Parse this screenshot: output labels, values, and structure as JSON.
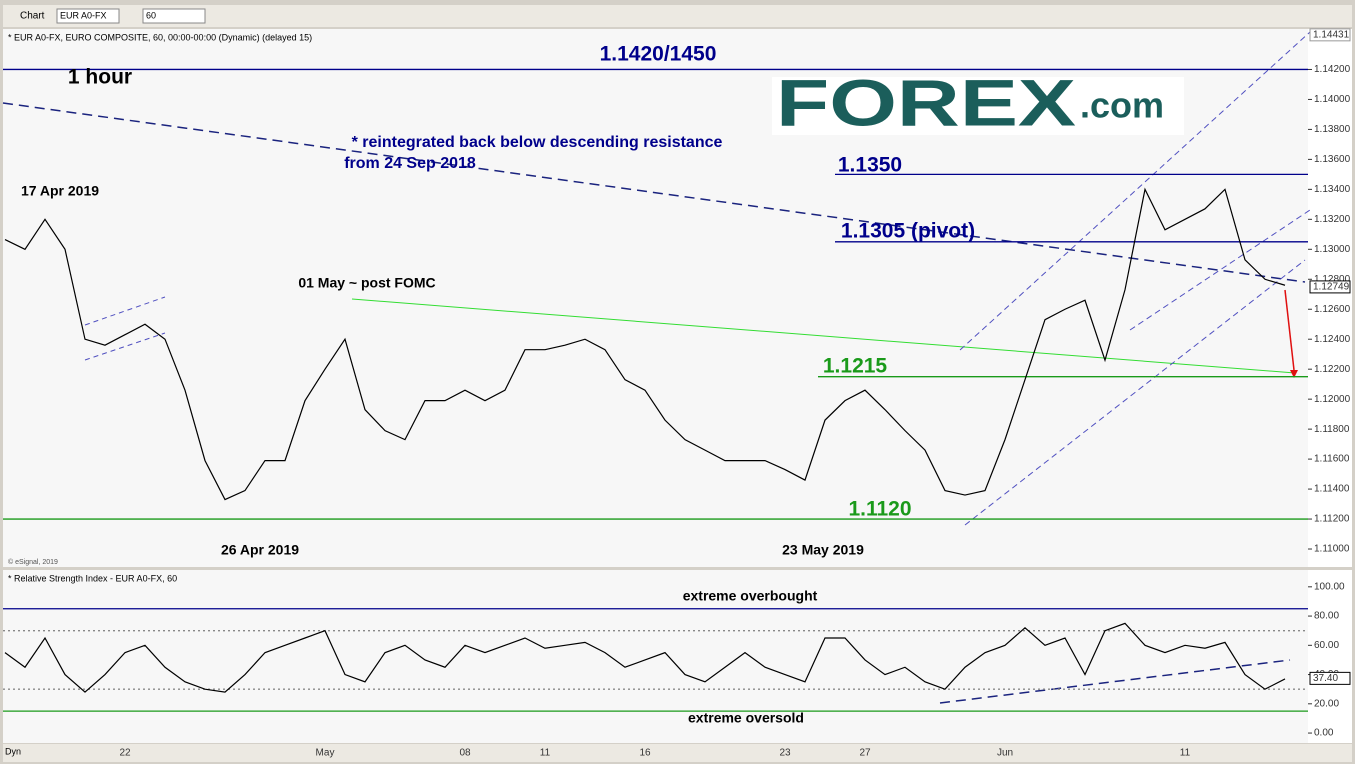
{
  "toolbar": {
    "app": "Chart",
    "symbol": "EUR A0-FX",
    "interval": "60",
    "mode": "Dyn"
  },
  "chart_data": [
    {
      "type": "line",
      "title": "* EUR A0-FX, EURO COMPOSITE, 60, 00:00-00:00 (Dynamic) (delayed 15)",
      "credit": "© eSignal, 2019",
      "logo": {
        "main": "FOREX",
        "suffix": ".com"
      },
      "categories": [
        null,
        null,
        null,
        null,
        null,
        null,
        "22",
        null,
        null,
        null,
        null,
        null,
        null,
        null,
        null,
        null,
        "May",
        null,
        null,
        null,
        null,
        null,
        null,
        "08",
        null,
        null,
        null,
        "11",
        null,
        null,
        null,
        null,
        "16",
        null,
        null,
        null,
        null,
        null,
        null,
        "23",
        null,
        null,
        null,
        "27",
        null,
        null,
        null,
        null,
        null,
        null,
        "Jun",
        null,
        null,
        null,
        null,
        null,
        null,
        null,
        null,
        "11",
        null,
        null,
        null,
        null,
        null
      ],
      "series": [
        {
          "color": "#000000",
          "values": [
            1.13065,
            1.13,
            1.132,
            1.13,
            1.124,
            1.1236,
            1.1243,
            1.125,
            1.124,
            1.1206,
            1.1159,
            1.1133,
            1.1139,
            1.1159,
            1.1159,
            1.1199,
            1.122,
            1.124,
            1.1193,
            1.1179,
            1.1173,
            1.1199,
            1.1199,
            1.1206,
            1.1199,
            1.1206,
            1.1233,
            1.1233,
            1.1236,
            1.124,
            1.1233,
            1.1213,
            1.1206,
            1.1186,
            1.1173,
            1.1166,
            1.1159,
            1.1159,
            1.1159,
            1.1153,
            1.1146,
            1.1186,
            1.1199,
            1.1206,
            1.1193,
            1.1179,
            1.1166,
            1.1139,
            1.1136,
            1.1139,
            1.1173,
            1.1213,
            1.1253,
            1.126,
            1.1266,
            1.1226,
            1.1273,
            1.134,
            1.1313,
            1.132,
            1.1327,
            1.134,
            1.1293,
            1.128,
            1.1276
          ]
        }
      ],
      "ylim": [
        1.1088,
        1.1447
      ],
      "yticks": [
        {
          "value": 1.11,
          "label": "1.11000"
        },
        {
          "value": 1.112,
          "label": "1.11200"
        },
        {
          "value": 1.114,
          "label": "1.11400"
        },
        {
          "value": 1.116,
          "label": "1.11600"
        },
        {
          "value": 1.118,
          "label": "1.11800"
        },
        {
          "value": 1.12,
          "label": "1.12000"
        },
        {
          "value": 1.122,
          "label": "1.12200"
        },
        {
          "value": 1.124,
          "label": "1.12400"
        },
        {
          "value": 1.126,
          "label": "1.12600"
        },
        {
          "value": 1.128,
          "label": "1.12800"
        },
        {
          "value": 1.13,
          "label": "1.13000"
        },
        {
          "value": 1.132,
          "label": "1.13200"
        },
        {
          "value": 1.134,
          "label": "1.13400"
        },
        {
          "value": 1.136,
          "label": "1.13600"
        },
        {
          "value": 1.138,
          "label": "1.13800"
        },
        {
          "value": 1.14,
          "label": "1.14000"
        },
        {
          "value": 1.142,
          "label": "1.14200"
        }
      ],
      "high_price": 1.14431,
      "current_price": 1.12749,
      "levels": [
        {
          "value": 1.142,
          "label": "1.1420/1450",
          "color": "#00008b"
        },
        {
          "value": 1.135,
          "label": "1.1350",
          "color": "#00008b"
        },
        {
          "value": 1.1305,
          "label": "1.1305 (pivot)",
          "color": "#00008b"
        },
        {
          "value": 1.1215,
          "label": "1.1215",
          "color": "#1a9a1a"
        },
        {
          "value": 1.112,
          "label": "1.1120",
          "color": "#1a9a1a"
        }
      ],
      "annotations": [
        "1 hour",
        "17 Apr 2019",
        "26 Apr 2019",
        "01 May ~ post FOMC",
        "23 May 2019",
        "* reintegrated back below descending resistance",
        "from 24 Sep 2018"
      ]
    },
    {
      "type": "line",
      "title": "* Relative Strength Index - EUR A0-FX, 60",
      "series": [
        {
          "color": "#000000",
          "values": [
            55,
            45,
            65,
            40,
            28,
            40,
            55,
            60,
            45,
            35,
            30,
            28,
            40,
            55,
            60,
            65,
            70,
            40,
            35,
            55,
            60,
            50,
            45,
            60,
            55,
            60,
            65,
            58,
            60,
            62,
            55,
            45,
            50,
            55,
            40,
            35,
            45,
            55,
            45,
            40,
            35,
            65,
            65,
            50,
            40,
            45,
            35,
            30,
            45,
            55,
            60,
            72,
            60,
            65,
            40,
            70,
            75,
            60,
            55,
            60,
            58,
            62,
            40,
            30,
            37
          ]
        }
      ],
      "ylim": [
        -6.8,
        111.5
      ],
      "yticks": [
        {
          "value": 0,
          "label": "0.00"
        },
        {
          "value": 20,
          "label": "20.00"
        },
        {
          "value": 40,
          "label": "40.00"
        },
        {
          "value": 60,
          "label": "60.00"
        },
        {
          "value": 80,
          "label": "80.00"
        },
        {
          "value": 100,
          "label": "100.00"
        }
      ],
      "current_value": {
        "value": 37.4,
        "label": "37.40"
      },
      "levels": [
        {
          "value": 85,
          "label": "extreme overbought",
          "color": "#00008b"
        },
        {
          "value": 70,
          "color": "#888888"
        },
        {
          "value": 30,
          "color": "#888888"
        },
        {
          "value": 15,
          "label": "extreme oversold",
          "color": "#1a9a1a"
        }
      ]
    }
  ]
}
